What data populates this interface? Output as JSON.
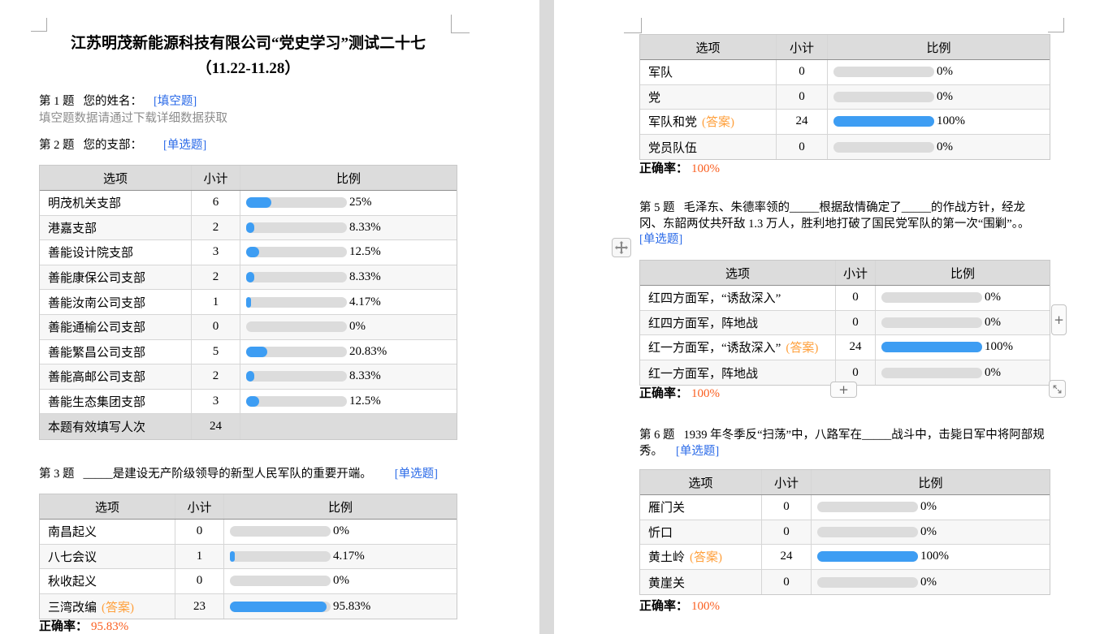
{
  "colors": {
    "link_blue": "#2a6ae8",
    "bar_blue": "#3d9df3",
    "bar_track": "#dcdcdc",
    "table_header_bg": "#dcdcdc",
    "answer_orange": "#ffa03c",
    "rate_orange": "#fa5e1f",
    "note_gray": "#8c8c8c"
  },
  "table_headers": [
    "选项",
    "小计",
    "比例"
  ],
  "answer_suffix": "(答案)",
  "ui": {
    "plus_label": "+"
  },
  "left_page": {
    "title_line1": "江苏明茂新能源科技有限公司“党史学习”测试二十七",
    "title_line2": "（11.22-11.28）",
    "q1": {
      "prefix": "第 1 题",
      "text": "您的姓名：",
      "tag": "[填空题]",
      "note": "填空题数据请通过下载详细数据获取"
    },
    "q2": {
      "prefix": "第 2 题",
      "text": "您的支部：",
      "tag": "[单选题]"
    },
    "table_q2": {
      "rows": [
        {
          "label": "明茂机关支部",
          "count": "6",
          "percent": 25,
          "percent_label": "25%",
          "answer": false
        },
        {
          "label": "港嘉支部",
          "count": "2",
          "percent": 8.33,
          "percent_label": "8.33%",
          "answer": false
        },
        {
          "label": "善能设计院支部",
          "count": "3",
          "percent": 12.5,
          "percent_label": "12.5%",
          "answer": false
        },
        {
          "label": "善能康保公司支部",
          "count": "2",
          "percent": 8.33,
          "percent_label": "8.33%",
          "answer": false
        },
        {
          "label": "善能汝南公司支部",
          "count": "1",
          "percent": 4.17,
          "percent_label": "4.17%",
          "answer": false
        },
        {
          "label": "善能通榆公司支部",
          "count": "0",
          "percent": 0,
          "percent_label": "0%",
          "answer": false
        },
        {
          "label": "善能繁昌公司支部",
          "count": "5",
          "percent": 20.83,
          "percent_label": "20.83%",
          "answer": false
        },
        {
          "label": "善能高邮公司支部",
          "count": "2",
          "percent": 8.33,
          "percent_label": "8.33%",
          "answer": false
        },
        {
          "label": "善能生态集团支部",
          "count": "3",
          "percent": 12.5,
          "percent_label": "12.5%",
          "answer": false
        }
      ],
      "footer": {
        "label": "本题有效填写人次",
        "count": "24"
      }
    },
    "q3": {
      "prefix": "第 3 题",
      "text": "_____是建设无产阶级领导的新型人民军队的重要开端。",
      "tag": "[单选题]"
    },
    "table_q3": {
      "rows": [
        {
          "label": "南昌起义",
          "count": "0",
          "percent": 0,
          "percent_label": "0%",
          "answer": false
        },
        {
          "label": "八七会议",
          "count": "1",
          "percent": 4.17,
          "percent_label": "4.17%",
          "answer": false
        },
        {
          "label": "秋收起义",
          "count": "0",
          "percent": 0,
          "percent_label": "0%",
          "answer": false
        },
        {
          "label": "三湾改编",
          "count": "23",
          "percent": 95.83,
          "percent_label": "95.83%",
          "answer": true
        }
      ]
    },
    "rate_q3": {
      "label": "正确率：",
      "value": "95.83%"
    }
  },
  "right_page": {
    "table_q4": {
      "rows": [
        {
          "label": "军队",
          "count": "0",
          "percent": 0,
          "percent_label": "0%",
          "answer": false
        },
        {
          "label": "党",
          "count": "0",
          "percent": 0,
          "percent_label": "0%",
          "answer": false
        },
        {
          "label": "军队和党",
          "count": "24",
          "percent": 100,
          "percent_label": "100%",
          "answer": true
        },
        {
          "label": "党员队伍",
          "count": "0",
          "percent": 0,
          "percent_label": "0%",
          "answer": false
        }
      ]
    },
    "rate_q4": {
      "label": "正确率：",
      "value": "100%"
    },
    "q5": {
      "prefix": "第 5 题",
      "line1": "毛泽东、朱德率领的_____根据敌情确定了_____的作战方针，经龙",
      "line2": "冈、东韶两仗共歼敌 1.3 万人，胜利地打破了国民党军队的第一次“围剿”。。",
      "tag": "[单选题]"
    },
    "table_q5": {
      "rows": [
        {
          "label": "红四方面军，“诱敌深入”",
          "count": "0",
          "percent": 0,
          "percent_label": "0%",
          "answer": false
        },
        {
          "label": "红四方面军，阵地战",
          "count": "0",
          "percent": 0,
          "percent_label": "0%",
          "answer": false
        },
        {
          "label": "红一方面军，“诱敌深入”",
          "count": "24",
          "percent": 100,
          "percent_label": "100%",
          "answer": true
        },
        {
          "label": "红一方面军，阵地战",
          "count": "0",
          "percent": 0,
          "percent_label": "0%",
          "answer": false
        }
      ]
    },
    "rate_q5": {
      "label": "正确率：",
      "value": "100%"
    },
    "q6": {
      "prefix": "第 6 题",
      "line1": "1939 年冬季反“扫荡”中，八路军在_____战斗中，击毙日军中将阿部规",
      "line2": "秀。",
      "tag": "[单选题]"
    },
    "table_q6": {
      "rows": [
        {
          "label": "雁门关",
          "count": "0",
          "percent": 0,
          "percent_label": "0%",
          "answer": false
        },
        {
          "label": "忻口",
          "count": "0",
          "percent": 0,
          "percent_label": "0%",
          "answer": false
        },
        {
          "label": "黄土岭",
          "count": "24",
          "percent": 100,
          "percent_label": "100%",
          "answer": true
        },
        {
          "label": "黄崖关",
          "count": "0",
          "percent": 0,
          "percent_label": "0%",
          "answer": false
        }
      ]
    },
    "rate_q6": {
      "label": "正确率：",
      "value": "100%"
    }
  }
}
